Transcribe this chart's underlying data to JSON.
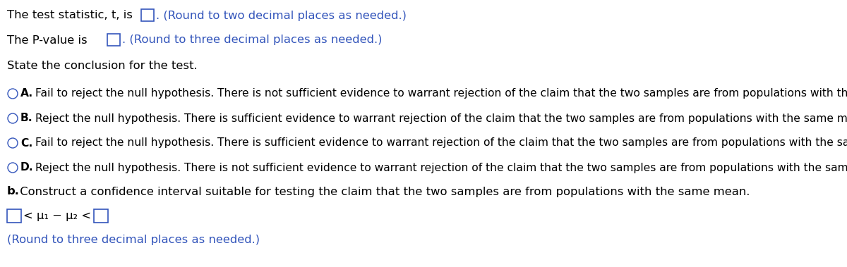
{
  "bg_color": "#ffffff",
  "text_color": "#000000",
  "blue_color": "#3355bb",
  "line1_black": "The test statistic, t, is",
  "line1_blue": ". (Round to two decimal places as needed.)",
  "line2_black": "The P-value is",
  "line2_blue": ". (Round to three decimal places as needed.)",
  "line3": "State the conclusion for the test.",
  "optionA_letter": "A.",
  "optionA_text": "Fail to reject the null hypothesis. There is not sufficient evidence to warrant rejection of the claim that the two samples are from populations with the same mean.",
  "optionB_letter": "B.",
  "optionB_text": "Reject the null hypothesis. There is sufficient evidence to warrant rejection of the claim that the two samples are from populations with the same mean.",
  "optionC_letter": "C.",
  "optionC_text": "Fail to reject the null hypothesis. There is sufficient evidence to warrant rejection of the claim that the two samples are from populations with the same mean.",
  "optionD_letter": "D.",
  "optionD_text": "Reject the null hypothesis. There is not sufficient evidence to warrant rejection of the claim that the two samples are from populations with the same mean.",
  "partb_bold": "b.",
  "partb_text": " Construct a confidence interval suitable for testing the claim that the two samples are from populations with the same mean.",
  "interval_text": "< μ₁ − μ₂ <",
  "round_note_blue": "(Round to three decimal places as needed.)",
  "font_size_main": 11.8,
  "font_size_options": 11.2,
  "fig_width": 12.0,
  "fig_height": 3.79,
  "dpi": 100
}
